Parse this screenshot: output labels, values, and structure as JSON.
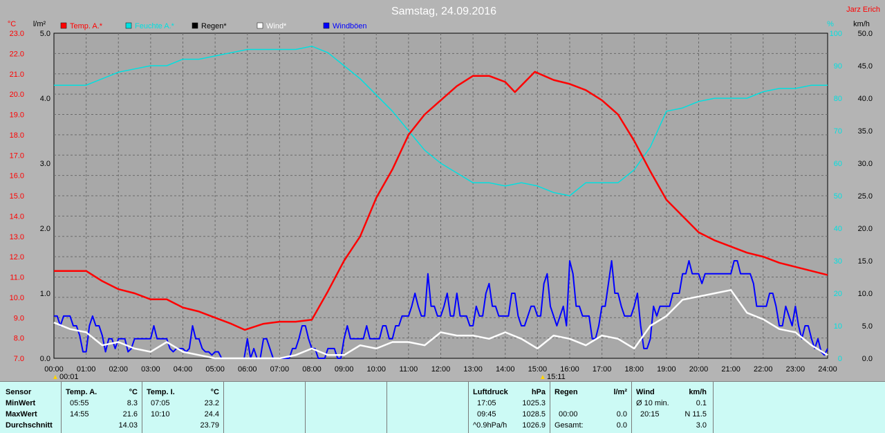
{
  "title": "Samstag, 24.09.2016",
  "author": "Jarz Erich",
  "units": {
    "left_temp": "°C",
    "left_rain": "l/m²",
    "right_hum": "%",
    "right_wind": "km/h"
  },
  "legend": [
    {
      "label": "Temp. A.*",
      "color": "#ff0000"
    },
    {
      "label": "Feuchte A.*",
      "color": "#00e0e0"
    },
    {
      "label": "Regen*",
      "color": "#000000"
    },
    {
      "label": "Wind*",
      "color": "#ffffff"
    },
    {
      "label": "Windböen",
      "color": "#0000ff"
    }
  ],
  "markers": {
    "min_time": "00:01",
    "max_time": "15:11"
  },
  "chart_data": {
    "type": "line",
    "title": "Samstag, 24.09.2016",
    "x_ticks": [
      "00:00",
      "01:00",
      "02:00",
      "03:00",
      "04:00",
      "05:00",
      "06:00",
      "07:00",
      "08:00",
      "09:00",
      "10:00",
      "11:00",
      "12:00",
      "13:00",
      "14:00",
      "15:00",
      "16:00",
      "17:00",
      "18:00",
      "19:00",
      "20:00",
      "21:00",
      "22:00",
      "23:00",
      "24:00"
    ],
    "axes": {
      "temp": {
        "ylim": [
          7.0,
          23.0
        ],
        "ticks": [
          "7.0",
          "8.0",
          "9.0",
          "10.0",
          "11.0",
          "12.0",
          "13.0",
          "14.0",
          "15.0",
          "16.0",
          "17.0",
          "18.0",
          "19.0",
          "20.0",
          "21.0",
          "22.0",
          "23.0"
        ],
        "color": "#ff0000"
      },
      "rain": {
        "ylim": [
          0.0,
          5.0
        ],
        "ticks": [
          "0.0",
          "1.0",
          "2.0",
          "3.0",
          "4.0",
          "5.0"
        ],
        "color": "#000000"
      },
      "humidity": {
        "ylim": [
          0,
          100
        ],
        "ticks": [
          "0",
          "10",
          "20",
          "30",
          "40",
          "50",
          "60",
          "70",
          "80",
          "90",
          "100"
        ],
        "color": "#00e0e0"
      },
      "wind": {
        "ylim": [
          0.0,
          50.0
        ],
        "ticks": [
          "0.0",
          "5.0",
          "10.0",
          "15.0",
          "20.0",
          "25.0",
          "30.0",
          "35.0",
          "40.0",
          "45.0",
          "50.0"
        ],
        "color": "#000000"
      }
    },
    "grid": true,
    "series": [
      {
        "name": "Temp. A.*",
        "axis": "temp",
        "color": "#ff0000",
        "x": [
          0,
          0.5,
          1,
          1.5,
          2,
          2.5,
          3,
          3.5,
          4,
          4.5,
          5,
          5.5,
          5.92,
          6.5,
          7,
          7.5,
          8,
          8.5,
          9,
          9.5,
          10,
          10.5,
          11,
          11.5,
          12,
          12.5,
          13,
          13.5,
          14,
          14.3,
          14.92,
          15.5,
          16,
          16.5,
          17,
          17.5,
          18,
          18.5,
          19,
          19.5,
          20,
          20.5,
          21,
          21.5,
          22,
          22.5,
          23,
          23.5,
          24
        ],
        "y": [
          11.3,
          11.3,
          11.3,
          10.8,
          10.4,
          10.2,
          9.9,
          9.9,
          9.5,
          9.3,
          9.0,
          8.7,
          8.4,
          8.7,
          8.8,
          8.8,
          8.9,
          10.3,
          11.8,
          13.0,
          14.9,
          16.3,
          18.0,
          19.0,
          19.7,
          20.4,
          20.9,
          20.9,
          20.6,
          20.1,
          21.1,
          20.7,
          20.5,
          20.2,
          19.7,
          19.0,
          17.7,
          16.2,
          14.8,
          14.0,
          13.2,
          12.8,
          12.5,
          12.2,
          12.0,
          11.7,
          11.5,
          11.3,
          11.1
        ]
      },
      {
        "name": "Feuchte A.*",
        "axis": "humidity",
        "color": "#00e0e0",
        "x": [
          0,
          1,
          1.5,
          2,
          2.5,
          3,
          3.5,
          4,
          4.5,
          5,
          5.5,
          6,
          6.5,
          7,
          7.5,
          8,
          8.5,
          9,
          9.5,
          10,
          10.5,
          11,
          11.5,
          12,
          12.5,
          13,
          13.5,
          14,
          14.5,
          15,
          15.5,
          16,
          16.5,
          17,
          17.5,
          18,
          18.5,
          19,
          19.5,
          20,
          20.5,
          21,
          21.5,
          22,
          22.5,
          23,
          23.5,
          24
        ],
        "y": [
          84,
          84,
          86,
          88,
          89,
          90,
          90,
          92,
          92,
          93,
          94,
          95,
          95,
          95,
          95,
          96,
          94,
          90,
          86,
          81,
          76,
          70,
          64,
          60,
          57,
          54,
          54,
          53,
          54,
          53,
          51,
          50,
          54,
          54,
          54,
          58,
          65,
          76,
          77,
          79,
          80,
          80,
          80,
          82,
          83,
          83,
          84,
          84
        ]
      },
      {
        "name": "Regen*",
        "axis": "rain",
        "color": "#000000",
        "x": [
          0,
          24
        ],
        "y": [
          0,
          0
        ]
      },
      {
        "name": "Wind*",
        "axis": "wind",
        "color": "#ffffff",
        "x": [
          0,
          0.5,
          1,
          1.5,
          2,
          2.5,
          3,
          3.5,
          4,
          4.5,
          5,
          5.5,
          6,
          6.5,
          7,
          7.5,
          8,
          8.5,
          9,
          9.5,
          10,
          10.5,
          11,
          11.5,
          12,
          12.5,
          13,
          13.5,
          14,
          14.5,
          15,
          15.5,
          16,
          16.5,
          17,
          17.5,
          18,
          18.5,
          19,
          19.5,
          20,
          20.5,
          21,
          21.5,
          22,
          22.5,
          23,
          23.5,
          24
        ],
        "y": [
          5.5,
          4.5,
          4.0,
          2.0,
          2.5,
          1.5,
          1.0,
          2.5,
          1.0,
          0.5,
          0,
          0,
          0,
          0,
          0,
          0.5,
          1.5,
          0.5,
          0.5,
          2.0,
          1.5,
          2.5,
          2.5,
          2.0,
          4.0,
          3.5,
          3.5,
          3.0,
          4.0,
          3.0,
          1.5,
          3.5,
          3.0,
          2.0,
          3.5,
          3.0,
          1.5,
          5.0,
          6.5,
          9.0,
          9.5,
          10.0,
          10.5,
          7.0,
          6.0,
          4.5,
          4.0,
          2.0,
          0.5
        ]
      },
      {
        "name": "Windböen",
        "axis": "wind",
        "color": "#0000ff",
        "x": [
          0,
          0.1,
          0.2,
          0.3,
          0.4,
          0.5,
          0.6,
          0.7,
          0.8,
          0.9,
          1,
          1.1,
          1.2,
          1.3,
          1.4,
          1.5,
          1.6,
          1.7,
          1.8,
          1.9,
          2,
          2.1,
          2.2,
          2.3,
          2.4,
          2.5,
          2.6,
          2.7,
          2.8,
          2.9,
          3,
          3.1,
          3.2,
          3.3,
          3.4,
          3.5,
          3.6,
          3.7,
          3.8,
          3.9,
          4,
          4.1,
          4.2,
          4.3,
          4.4,
          4.5,
          4.6,
          4.7,
          4.8,
          4.9,
          5,
          5.1,
          5.2,
          5.3,
          5.4,
          5.5,
          5.6,
          5.7,
          5.8,
          5.9,
          6,
          6.1,
          6.2,
          6.3,
          6.4,
          6.5,
          6.6,
          6.7,
          6.8,
          6.9,
          7,
          7.1,
          7.2,
          7.3,
          7.4,
          7.5,
          7.6,
          7.7,
          7.8,
          7.9,
          8,
          8.1,
          8.2,
          8.3,
          8.4,
          8.5,
          8.6,
          8.7,
          8.8,
          8.9,
          9,
          9.1,
          9.2,
          9.3,
          9.4,
          9.5,
          9.6,
          9.7,
          9.8,
          9.9,
          10,
          10.1,
          10.2,
          10.3,
          10.4,
          10.5,
          10.6,
          10.7,
          10.8,
          10.9,
          11,
          11.1,
          11.2,
          11.3,
          11.4,
          11.5,
          11.6,
          11.7,
          11.8,
          11.9,
          12,
          12.1,
          12.2,
          12.3,
          12.4,
          12.5,
          12.6,
          12.7,
          12.8,
          12.9,
          13,
          13.1,
          13.2,
          13.3,
          13.4,
          13.5,
          13.6,
          13.7,
          13.8,
          13.9,
          14,
          14.1,
          14.2,
          14.3,
          14.4,
          14.5,
          14.6,
          14.7,
          14.8,
          14.9,
          15,
          15.1,
          15.2,
          15.3,
          15.4,
          15.5,
          15.6,
          15.7,
          15.8,
          15.9,
          16,
          16.1,
          16.2,
          16.3,
          16.4,
          16.5,
          16.6,
          16.7,
          16.8,
          16.9,
          17,
          17.1,
          17.2,
          17.3,
          17.4,
          17.5,
          17.6,
          17.7,
          17.8,
          17.9,
          18,
          18.1,
          18.2,
          18.3,
          18.4,
          18.5,
          18.6,
          18.7,
          18.8,
          18.9,
          19,
          19.1,
          19.2,
          19.3,
          19.4,
          19.5,
          19.6,
          19.7,
          19.8,
          19.9,
          20,
          20.1,
          20.2,
          20.3,
          20.4,
          20.5,
          20.6,
          20.7,
          20.8,
          20.9,
          21,
          21.1,
          21.2,
          21.3,
          21.4,
          21.5,
          21.6,
          21.7,
          21.8,
          21.9,
          22,
          22.1,
          22.2,
          22.3,
          22.4,
          22.5,
          22.6,
          22.7,
          22.8,
          22.9,
          23,
          23.1,
          23.2,
          23.3,
          23.4,
          23.5,
          23.6,
          23.7,
          23.8,
          23.9,
          24
        ],
        "y": [
          6.5,
          6.5,
          5.0,
          6.5,
          6.5,
          6.5,
          5.0,
          5.0,
          3.5,
          1.0,
          1.0,
          5.0,
          6.5,
          5.0,
          5.0,
          3.5,
          1.0,
          3.0,
          3.0,
          1.5,
          3.0,
          3.0,
          3.0,
          1.0,
          1.5,
          3.0,
          3.0,
          3.0,
          3.0,
          3.0,
          3.0,
          5.0,
          3.0,
          3.0,
          3.0,
          3.0,
          1.5,
          1.0,
          1.5,
          1.5,
          1.5,
          1.0,
          1.5,
          5.0,
          3.0,
          3.0,
          1.5,
          1.0,
          1.0,
          0.5,
          1.0,
          1.0,
          0,
          0,
          0,
          0,
          0,
          0,
          0,
          0,
          3.0,
          0,
          1.5,
          0,
          0,
          3.0,
          3.0,
          1.5,
          0,
          0,
          0,
          0,
          0,
          0,
          1.5,
          1.5,
          3.0,
          5.0,
          5.0,
          3.0,
          1.5,
          1.5,
          0,
          0,
          0,
          1.5,
          1.5,
          1.5,
          0,
          0,
          3.0,
          5.0,
          3.0,
          3.0,
          3.0,
          3.0,
          3.0,
          5.0,
          3.0,
          3.0,
          3.0,
          3.0,
          5.0,
          5.0,
          3.0,
          3.0,
          5.0,
          5.0,
          6.5,
          6.5,
          6.5,
          8.0,
          10.0,
          8.0,
          6.5,
          6.5,
          13.0,
          8.0,
          8.0,
          6.5,
          6.5,
          8.0,
          10.0,
          6.5,
          6.5,
          10.0,
          6.5,
          6.5,
          6.5,
          5.0,
          5.0,
          8.0,
          6.5,
          6.5,
          10.0,
          11.5,
          8.0,
          8.0,
          6.5,
          6.5,
          6.5,
          6.5,
          10.0,
          10.0,
          6.5,
          5.0,
          5.0,
          6.5,
          8.0,
          8.0,
          6.5,
          6.5,
          11.5,
          13.0,
          8.0,
          6.5,
          5.0,
          6.5,
          8.0,
          5.0,
          15.0,
          13.0,
          8.0,
          8.0,
          6.5,
          6.5,
          6.5,
          3.0,
          3.0,
          5.0,
          8.0,
          8.0,
          11.5,
          15.0,
          10.0,
          10.0,
          8.0,
          6.5,
          6.5,
          6.5,
          8.0,
          10.0,
          5.0,
          1.5,
          1.5,
          3.0,
          8.0,
          6.5,
          8.0,
          8.0,
          8.0,
          8.0,
          10.0,
          10.0,
          10.0,
          13.0,
          13.0,
          15.0,
          13.0,
          13.0,
          13.0,
          11.5,
          13.0,
          13.0,
          13.0,
          13.0,
          13.0,
          13.0,
          13.0,
          13.0,
          13.0,
          15.0,
          15.0,
          13.0,
          13.0,
          13.0,
          13.0,
          11.5,
          8.0,
          8.0,
          8.0,
          8.0,
          10.0,
          10.0,
          8.0,
          5.0,
          5.0,
          8.0,
          6.5,
          5.0,
          8.0,
          5.0,
          3.0,
          5.0,
          5.0,
          3.0,
          1.5,
          3.0,
          1.0,
          0.5,
          1.5
        ]
      }
    ]
  },
  "table": {
    "sensor": {
      "header": "Sensor",
      "rows": [
        "MinWert",
        "MaxWert",
        "Durchschnitt"
      ]
    },
    "temp_a": {
      "header": "Temp. A.",
      "unit": "°C",
      "times": [
        "05:55",
        "14:55",
        ""
      ],
      "values": [
        "8.3",
        "21.6",
        "14.03"
      ]
    },
    "temp_i": {
      "header": "Temp. I.",
      "unit": "°C",
      "times": [
        "07:05",
        "10:10",
        ""
      ],
      "values": [
        "23.2",
        "24.4",
        "23.79"
      ]
    },
    "pressure": {
      "header": "Luftdruck",
      "unit": "hPa",
      "times": [
        "17:05",
        "09:45",
        "^0.9hPa/h"
      ],
      "values": [
        "1025.3",
        "1028.5",
        "1026.9"
      ]
    },
    "rain": {
      "header": "Regen",
      "unit": "l/m²",
      "times": [
        "",
        "00:00",
        "Gesamt:"
      ],
      "values": [
        "",
        "0.0",
        "0.0"
      ]
    },
    "wind": {
      "header": "Wind",
      "unit": "km/h",
      "times": [
        "Ø 10 min.",
        "20:15",
        ""
      ],
      "values": [
        "0.1",
        "N 11.5",
        "3.0"
      ]
    }
  }
}
